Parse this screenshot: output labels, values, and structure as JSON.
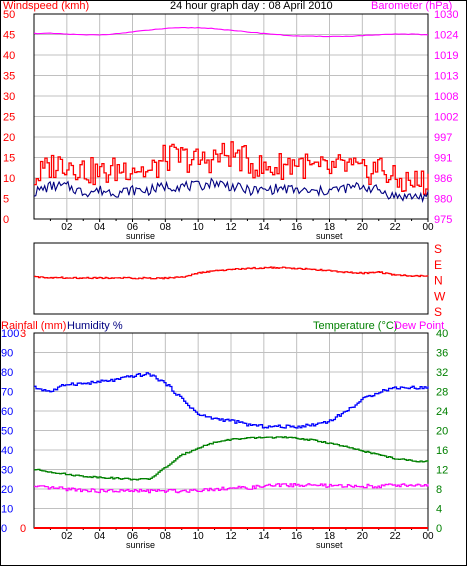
{
  "header": {
    "left_label": "Windspeed (kmh)",
    "title": "24 hour graph day : 08 April 2010",
    "right_label": "Barometer (hPa)"
  },
  "bottom_header": {
    "rainfall_label": "Rainfall (mm)",
    "humidity_label": "Humidity %",
    "temperature_label": "Temperature (°C)",
    "dewpoint_label": "Dew Point"
  },
  "colors": {
    "wind": "#ff0000",
    "wind_avg": "#000080",
    "barometer": "#ff00ff",
    "direction": "#ff0000",
    "humidity": "#0000ff",
    "temperature": "#008000",
    "dewpoint": "#ff00ff",
    "rainfall": "#ff0000",
    "humidity_label": "#000080",
    "temperature_label": "#008000",
    "dewpoint_label": "#ff00ff"
  },
  "sun_labels": {
    "sunrise": "sunrise",
    "sunset": "sunset"
  },
  "x_ticks": [
    "02",
    "04",
    "06",
    "08",
    "10",
    "12",
    "14",
    "16",
    "18",
    "20",
    "22",
    "00"
  ],
  "chart_data": [
    {
      "type": "line",
      "title": "24 hour graph day : 08 April 2010",
      "xlabel": "",
      "ylabel": "Windspeed (kmh)",
      "y2label": "Barometer (hPa)",
      "x": [
        "00",
        "01",
        "02",
        "03",
        "04",
        "05",
        "06",
        "07",
        "08",
        "09",
        "10",
        "11",
        "12",
        "13",
        "14",
        "15",
        "16",
        "17",
        "18",
        "19",
        "20",
        "21",
        "22",
        "23",
        "24"
      ],
      "x_ticks": [
        "02",
        "04",
        "06",
        "08",
        "10",
        "12",
        "14",
        "16",
        "18",
        "20",
        "22",
        "00"
      ],
      "ylim": [
        0,
        50
      ],
      "y_ticks": [
        0,
        5,
        10,
        15,
        20,
        25,
        30,
        35,
        40,
        45,
        50
      ],
      "y2lim": [
        975,
        1030
      ],
      "y2_ticks": [
        975,
        980,
        986,
        991,
        997,
        1002,
        1008,
        1013,
        1019,
        1024,
        1030
      ],
      "grid": true,
      "series": [
        {
          "name": "Windspeed (kmh)",
          "axis": "left",
          "values": [
            10,
            13,
            14,
            12,
            11,
            12,
            13,
            11,
            15,
            15,
            14,
            15,
            16,
            14,
            12,
            13,
            14,
            12,
            12,
            13,
            11,
            13,
            9,
            9,
            9
          ]
        },
        {
          "axis": "left",
          "values": [
            6.5,
            8,
            8,
            6.5,
            7,
            6.5,
            7,
            7,
            8,
            8,
            8,
            9,
            8,
            7,
            7,
            7.5,
            7,
            6.5,
            7,
            7.5,
            8,
            7,
            5.5,
            5.5,
            5.5
          ]
        },
        {
          "name": "Barometer (hPa)",
          "axis": "right",
          "values": [
            1024.8,
            1024.8,
            1024.6,
            1024.4,
            1024.4,
            1024.7,
            1025.2,
            1025.7,
            1026.1,
            1026.3,
            1026.3,
            1026.1,
            1025.6,
            1025.2,
            1024.8,
            1024.4,
            1024.1,
            1024,
            1024,
            1024,
            1024.2,
            1024.4,
            1024.6,
            1024.6,
            1024.4
          ]
        }
      ],
      "annotations": [
        "sunrise",
        "sunset"
      ]
    },
    {
      "type": "line",
      "title": "",
      "ylabel": "",
      "y_ticks": [
        "S",
        "E",
        "N",
        "W",
        "S"
      ],
      "ylim": [
        0,
        360
      ],
      "series": [
        {
          "values": [
            352,
            354,
            356,
            356,
            357,
            357,
            358,
            358,
            358,
            352,
            330,
            318,
            310,
            305,
            300,
            300,
            305,
            310,
            318,
            325,
            330,
            325,
            340,
            345,
            345
          ]
        }
      ]
    },
    {
      "type": "line",
      "title": "",
      "ylabel": "Rainfall (mm)",
      "ylim": [
        0,
        100
      ],
      "y_ticks": [
        0,
        10,
        20,
        30,
        40,
        50,
        60,
        70,
        80,
        90,
        100
      ],
      "y_ticks_rainfall": [
        0,
        3
      ],
      "y2label": "Temperature (°C)",
      "y2lim": [
        0,
        40
      ],
      "y2_ticks": [
        0,
        4,
        8,
        12,
        16,
        20,
        24,
        28,
        32,
        36,
        40
      ],
      "grid": true,
      "series": [
        {
          "name": "Rainfall (mm)",
          "axis": "left",
          "values": [
            0,
            0,
            0,
            0,
            0,
            0,
            0,
            0,
            0,
            0,
            0,
            0,
            0,
            0,
            0,
            0,
            0,
            0,
            0,
            0,
            0,
            0,
            0,
            0,
            0
          ]
        },
        {
          "name": "Humidity %",
          "axis": "left",
          "values": [
            72,
            70,
            74,
            74,
            75,
            76,
            78,
            79,
            74,
            66,
            58,
            56,
            55,
            53,
            52,
            52,
            52,
            53,
            55,
            60,
            66,
            70,
            72,
            72,
            72
          ]
        },
        {
          "name": "Temperature (°C)",
          "axis": "right",
          "values": [
            12,
            11.5,
            11,
            10.6,
            10.4,
            10.2,
            10,
            10,
            12.5,
            15,
            16.5,
            17.6,
            18.2,
            18.4,
            18.6,
            18.6,
            18.4,
            18,
            17.4,
            16.6,
            15.8,
            15,
            14.2,
            13.8,
            13.6
          ]
        },
        {
          "name": "Dew Point",
          "axis": "right",
          "values": [
            8.4,
            8.2,
            8,
            7.8,
            7.6,
            7.6,
            7.6,
            7.6,
            7.6,
            7.6,
            7.8,
            8,
            8.2,
            8.2,
            8.6,
            8.8,
            8.8,
            8.8,
            8.6,
            8.6,
            8.6,
            8.6,
            8.8,
            8.8,
            8.8
          ]
        }
      ],
      "annotations": [
        "sunrise",
        "sunset"
      ]
    }
  ]
}
